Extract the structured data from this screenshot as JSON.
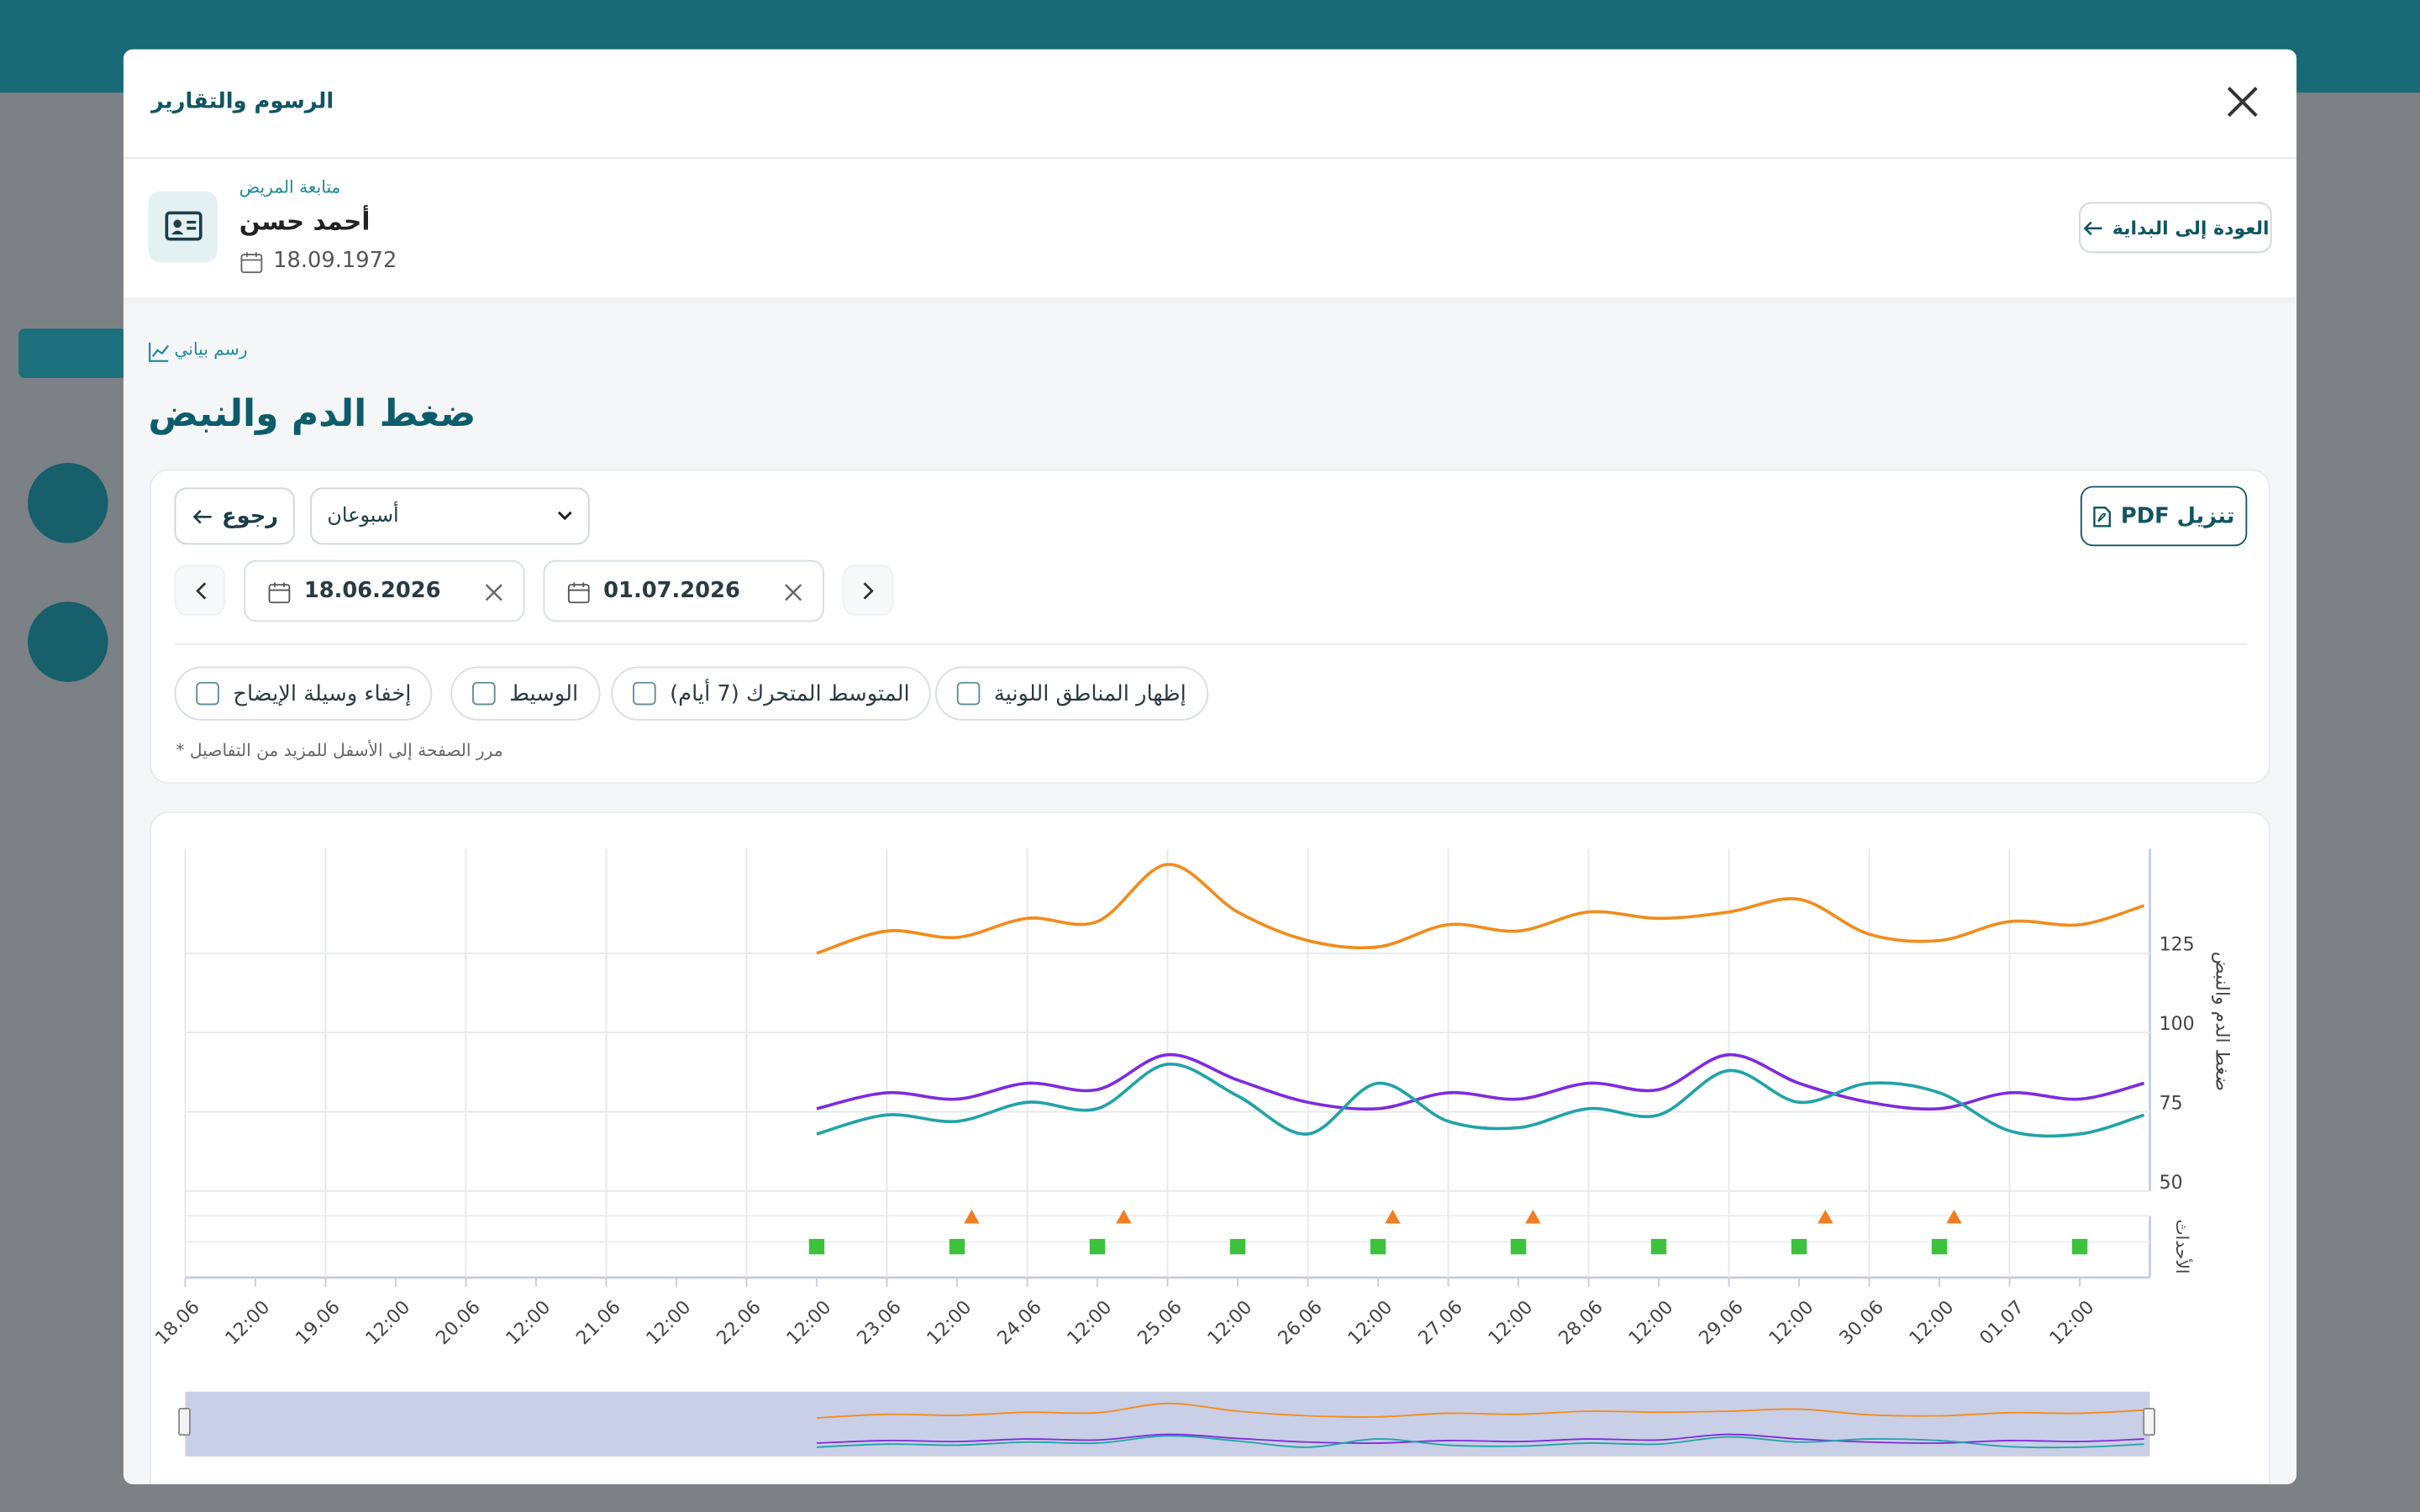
{
  "header": {
    "title": "الرسوم والتقارير"
  },
  "patient": {
    "caption": "متابعة المريض",
    "name": "أحمد حسن",
    "birth_date": "18.09.1972",
    "back_button": "العودة إلى البداية"
  },
  "section": {
    "kicker": "رسم بياني",
    "title": "ضغط الدم والنبض"
  },
  "controls": {
    "back": "رجوع",
    "range": "أسبوعان",
    "pdf": "تنزيل PDF",
    "date_from": "18.06.2026",
    "date_to": "01.07.2026",
    "options": [
      "إخفاء وسيلة الإيضاح",
      "الوسيط",
      "المتوسط المتحرك (7 أيام)",
      "إظهار المناطق اللونية"
    ],
    "note": "مرر الصفحة إلى الأسفل للمزيد من التفاصيل *"
  },
  "chart_data": {
    "type": "line",
    "y_label": "ضغط الدم والنبض",
    "events_label": "الأحداث",
    "x": [
      "22.06 12:00",
      "23.06 00:00",
      "23.06 12:00",
      "24.06 00:00",
      "24.06 12:00",
      "25.06 00:00",
      "25.06 12:00",
      "26.06 00:00",
      "26.06 12:00",
      "27.06 00:00",
      "27.06 12:00",
      "28.06 00:00",
      "28.06 12:00",
      "29.06 00:00",
      "29.06 12:00",
      "30.06 00:00",
      "30.06 12:00",
      "01.07 00:00",
      "01.07 12:00",
      "01.07 23:00"
    ],
    "series": [
      {
        "color": "#f28c1c",
        "values": [
          125,
          132,
          130,
          136,
          135,
          153,
          138,
          129,
          127,
          134,
          132,
          138,
          136,
          138,
          142,
          131,
          129,
          135,
          134,
          140
        ]
      },
      {
        "color": "#7e2be0",
        "values": [
          76,
          81,
          79,
          84,
          82,
          93,
          85,
          78,
          76,
          81,
          79,
          84,
          82,
          93,
          84,
          78,
          76,
          81,
          79,
          84
        ]
      },
      {
        "color": "#21a3a8",
        "values": [
          68,
          74,
          72,
          78,
          76,
          90,
          80,
          68,
          84,
          72,
          70,
          76,
          74,
          88,
          78,
          84,
          81,
          69,
          68,
          74
        ]
      }
    ],
    "events": [
      {
        "symbol": "triangle",
        "color": "#f07d22",
        "x": [
          "23.06 14:30",
          "24.06 16:30",
          "26.06 14:30",
          "27.06 14:30",
          "29.06 16:30",
          "30.06 14:30"
        ]
      },
      {
        "symbol": "square",
        "color": "#3cc23c",
        "x": [
          "22.06 12:00",
          "23.06 12:00",
          "24.06 12:00",
          "25.06 12:00",
          "26.06 12:00",
          "27.06 12:00",
          "28.06 12:00",
          "29.06 12:00",
          "30.06 12:00",
          "01.07 12:00"
        ]
      }
    ],
    "xlim": [
      "18.06 00:00",
      "02.07 00:00"
    ],
    "xticks": [
      {
        "value": "18.06 00:00",
        "label": "18.06"
      },
      {
        "value": "18.06 12:00",
        "label": "12:00"
      },
      {
        "value": "19.06 00:00",
        "label": "19.06"
      },
      {
        "value": "19.06 12:00",
        "label": "12:00"
      },
      {
        "value": "20.06 00:00",
        "label": "20.06"
      },
      {
        "value": "20.06 12:00",
        "label": "12:00"
      },
      {
        "value": "21.06 00:00",
        "label": "21.06"
      },
      {
        "value": "21.06 12:00",
        "label": "12:00"
      },
      {
        "value": "22.06 00:00",
        "label": "22.06"
      },
      {
        "value": "22.06 12:00",
        "label": "12:00"
      },
      {
        "value": "23.06 00:00",
        "label": "23.06"
      },
      {
        "value": "23.06 12:00",
        "label": "12:00"
      },
      {
        "value": "24.06 00:00",
        "label": "24.06"
      },
      {
        "value": "24.06 12:00",
        "label": "12:00"
      },
      {
        "value": "25.06 00:00",
        "label": "25.06"
      },
      {
        "value": "25.06 12:00",
        "label": "12:00"
      },
      {
        "value": "26.06 00:00",
        "label": "26.06"
      },
      {
        "value": "26.06 12:00",
        "label": "12:00"
      },
      {
        "value": "27.06 00:00",
        "label": "27.06"
      },
      {
        "value": "27.06 12:00",
        "label": "12:00"
      },
      {
        "value": "28.06 00:00",
        "label": "28.06"
      },
      {
        "value": "28.06 12:00",
        "label": "12:00"
      },
      {
        "value": "29.06 00:00",
        "label": "29.06"
      },
      {
        "value": "29.06 12:00",
        "label": "12:00"
      },
      {
        "value": "30.06 00:00",
        "label": "30.06"
      },
      {
        "value": "30.06 12:00",
        "label": "12:00"
      },
      {
        "value": "01.07 00:00",
        "label": "01.07"
      },
      {
        "value": "01.07 12:00",
        "label": "12:00"
      }
    ],
    "ylim": [
      50,
      158
    ],
    "yticks": [
      50,
      75,
      100,
      125
    ],
    "grid": true
  }
}
